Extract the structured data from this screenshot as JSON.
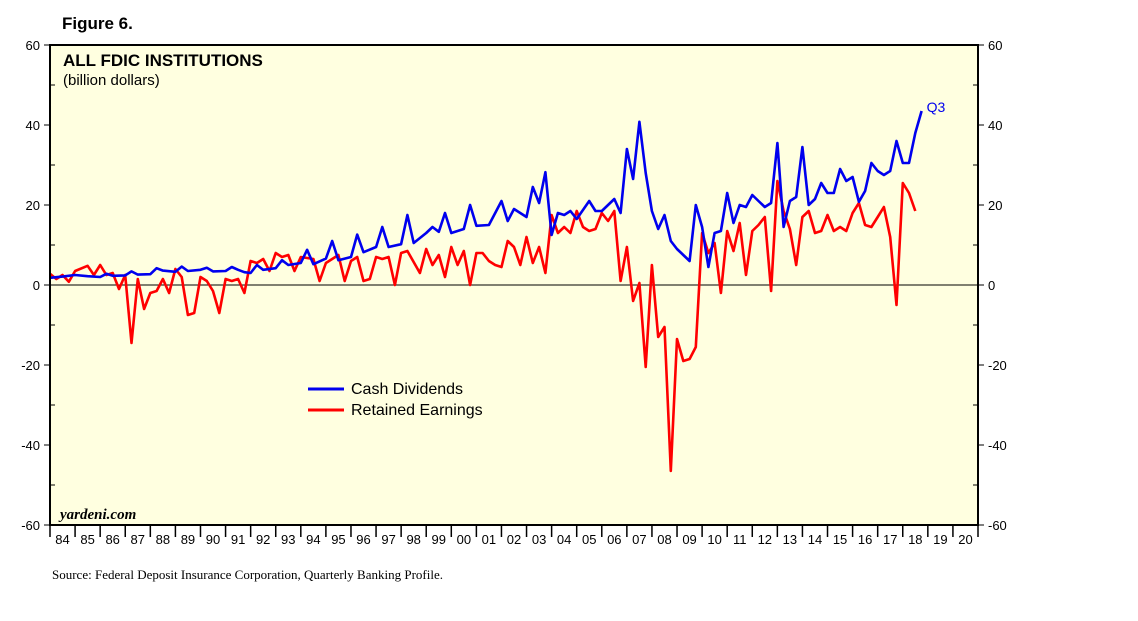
{
  "figure_label": "Figure 6.",
  "source": "Source: Federal Deposit Insurance Corporation, Quarterly Banking Profile.",
  "watermark": "yardeni.com",
  "chart_data": {
    "type": "line",
    "title": "ALL FDIC INSTITUTIONS",
    "subtitle": "(billion dollars)",
    "ylim": [
      -60,
      60
    ],
    "yticks": [
      -60,
      -40,
      -20,
      0,
      20,
      40,
      60
    ],
    "ytick_labels": [
      "-60",
      "-40",
      "-20",
      "0",
      "20",
      "40",
      "60"
    ],
    "x_range": [
      1984,
      2021
    ],
    "x_labels": [
      "84",
      "85",
      "86",
      "87",
      "88",
      "89",
      "90",
      "91",
      "92",
      "93",
      "94",
      "95",
      "96",
      "97",
      "98",
      "99",
      "00",
      "01",
      "02",
      "03",
      "04",
      "05",
      "06",
      "07",
      "08",
      "09",
      "10",
      "11",
      "12",
      "13",
      "14",
      "15",
      "16",
      "17",
      "18",
      "19",
      "20"
    ],
    "last_point_label": "Q3",
    "background": "#ffffe0",
    "legend": {
      "position": "center-left"
    },
    "series": [
      {
        "name": "Cash Dividends",
        "color": "#0000ee",
        "points": [
          [
            1984.0,
            1.8
          ],
          [
            1984.5,
            2.1
          ],
          [
            1985.0,
            2.5
          ],
          [
            1985.5,
            2.2
          ],
          [
            1986.0,
            2.0
          ],
          [
            1986.25,
            2.8
          ],
          [
            1986.5,
            2.3
          ],
          [
            1987.0,
            2.4
          ],
          [
            1987.25,
            3.4
          ],
          [
            1987.5,
            2.6
          ],
          [
            1988.0,
            2.7
          ],
          [
            1988.25,
            4.2
          ],
          [
            1988.5,
            3.6
          ],
          [
            1989.0,
            3.3
          ],
          [
            1989.25,
            4.6
          ],
          [
            1989.5,
            3.5
          ],
          [
            1990.0,
            3.8
          ],
          [
            1990.25,
            4.3
          ],
          [
            1990.5,
            3.4
          ],
          [
            1991.0,
            3.5
          ],
          [
            1991.25,
            4.5
          ],
          [
            1991.5,
            3.8
          ],
          [
            1991.75,
            3.2
          ],
          [
            1992.0,
            3.0
          ],
          [
            1992.25,
            5.0
          ],
          [
            1992.5,
            3.8
          ],
          [
            1993.0,
            4.2
          ],
          [
            1993.25,
            6.2
          ],
          [
            1993.5,
            5.0
          ],
          [
            1994.0,
            5.5
          ],
          [
            1994.25,
            8.8
          ],
          [
            1994.5,
            5.2
          ],
          [
            1995.0,
            6.6
          ],
          [
            1995.25,
            11.0
          ],
          [
            1995.5,
            6.2
          ],
          [
            1996.0,
            7.0
          ],
          [
            1996.25,
            12.6
          ],
          [
            1996.5,
            8.2
          ],
          [
            1997.0,
            9.5
          ],
          [
            1997.25,
            14.5
          ],
          [
            1997.5,
            9.5
          ],
          [
            1998.0,
            10.2
          ],
          [
            1998.25,
            17.5
          ],
          [
            1998.5,
            10.5
          ],
          [
            1999.0,
            13.0
          ],
          [
            1999.25,
            14.5
          ],
          [
            1999.5,
            13.3
          ],
          [
            1999.75,
            18.0
          ],
          [
            2000.0,
            13.0
          ],
          [
            2000.5,
            14.0
          ],
          [
            2000.75,
            20.0
          ],
          [
            2001.0,
            14.8
          ],
          [
            2001.5,
            15.0
          ],
          [
            2002.0,
            21.0
          ],
          [
            2002.25,
            16.0
          ],
          [
            2002.5,
            19.0
          ],
          [
            2003.0,
            17.0
          ],
          [
            2003.25,
            24.5
          ],
          [
            2003.5,
            20.5
          ],
          [
            2003.75,
            28.2
          ],
          [
            2004.0,
            12.5
          ],
          [
            2004.25,
            18.0
          ],
          [
            2004.5,
            17.5
          ],
          [
            2004.75,
            18.5
          ],
          [
            2005.0,
            16.5
          ],
          [
            2005.5,
            21.0
          ],
          [
            2005.75,
            18.5
          ],
          [
            2006.0,
            18.5
          ],
          [
            2006.5,
            21.5
          ],
          [
            2006.75,
            18.0
          ],
          [
            2007.0,
            34.0
          ],
          [
            2007.25,
            26.5
          ],
          [
            2007.5,
            40.8
          ],
          [
            2007.75,
            28.0
          ],
          [
            2008.0,
            18.5
          ],
          [
            2008.25,
            14.0
          ],
          [
            2008.5,
            17.5
          ],
          [
            2008.75,
            11.0
          ],
          [
            2009.0,
            9.0
          ],
          [
            2009.25,
            7.5
          ],
          [
            2009.5,
            6.0
          ],
          [
            2009.75,
            20.0
          ],
          [
            2010.0,
            14.5
          ],
          [
            2010.25,
            4.5
          ],
          [
            2010.5,
            13.0
          ],
          [
            2010.75,
            13.5
          ],
          [
            2011.0,
            23.0
          ],
          [
            2011.25,
            15.5
          ],
          [
            2011.5,
            20.0
          ],
          [
            2011.75,
            19.5
          ],
          [
            2012.0,
            22.5
          ],
          [
            2012.25,
            21.0
          ],
          [
            2012.5,
            19.5
          ],
          [
            2012.75,
            20.5
          ],
          [
            2013.0,
            35.5
          ],
          [
            2013.25,
            14.5
          ],
          [
            2013.5,
            21.0
          ],
          [
            2013.75,
            22.0
          ],
          [
            2014.0,
            34.5
          ],
          [
            2014.25,
            20.0
          ],
          [
            2014.5,
            21.5
          ],
          [
            2014.75,
            25.5
          ],
          [
            2015.0,
            23.0
          ],
          [
            2015.25,
            23.0
          ],
          [
            2015.5,
            29.0
          ],
          [
            2015.75,
            26.0
          ],
          [
            2016.0,
            27.0
          ],
          [
            2016.25,
            20.8
          ],
          [
            2016.5,
            23.5
          ],
          [
            2016.75,
            30.5
          ],
          [
            2017.0,
            28.5
          ],
          [
            2017.25,
            27.5
          ],
          [
            2017.5,
            28.5
          ],
          [
            2017.75,
            36.0
          ],
          [
            2018.0,
            30.5
          ],
          [
            2018.25,
            30.5
          ],
          [
            2018.5,
            38.0
          ],
          [
            2018.75,
            43.5
          ]
        ]
      },
      {
        "name": "Retained Earnings",
        "color": "#ff0000",
        "points": [
          [
            1984.0,
            2.8
          ],
          [
            1984.25,
            1.5
          ],
          [
            1984.5,
            2.5
          ],
          [
            1984.75,
            0.8
          ],
          [
            1985.0,
            3.5
          ],
          [
            1985.5,
            4.8
          ],
          [
            1985.75,
            2.5
          ],
          [
            1986.0,
            5.0
          ],
          [
            1986.25,
            2.5
          ],
          [
            1986.5,
            3.0
          ],
          [
            1986.75,
            -1.0
          ],
          [
            1987.0,
            2.5
          ],
          [
            1987.25,
            -14.5
          ],
          [
            1987.5,
            1.5
          ],
          [
            1987.75,
            -6.0
          ],
          [
            1988.0,
            -2.0
          ],
          [
            1988.25,
            -1.5
          ],
          [
            1988.5,
            1.5
          ],
          [
            1988.75,
            -2.0
          ],
          [
            1989.0,
            4.0
          ],
          [
            1989.25,
            2.0
          ],
          [
            1989.5,
            -7.5
          ],
          [
            1989.75,
            -7.0
          ],
          [
            1990.0,
            2.0
          ],
          [
            1990.25,
            1.0
          ],
          [
            1990.5,
            -1.5
          ],
          [
            1990.75,
            -7.0
          ],
          [
            1991.0,
            1.5
          ],
          [
            1991.25,
            1.0
          ],
          [
            1991.5,
            1.5
          ],
          [
            1991.75,
            -2.0
          ],
          [
            1992.0,
            6.0
          ],
          [
            1992.25,
            5.5
          ],
          [
            1992.5,
            6.5
          ],
          [
            1992.75,
            3.5
          ],
          [
            1993.0,
            8.0
          ],
          [
            1993.25,
            7.0
          ],
          [
            1993.5,
            7.5
          ],
          [
            1993.75,
            3.5
          ],
          [
            1994.0,
            7.0
          ],
          [
            1994.5,
            6.5
          ],
          [
            1994.75,
            1.0
          ],
          [
            1995.0,
            5.5
          ],
          [
            1995.5,
            7.5
          ],
          [
            1995.75,
            1.0
          ],
          [
            1996.0,
            6.0
          ],
          [
            1996.25,
            7.0
          ],
          [
            1996.5,
            1.0
          ],
          [
            1996.75,
            1.5
          ],
          [
            1997.0,
            7.0
          ],
          [
            1997.25,
            6.5
          ],
          [
            1997.5,
            7.0
          ],
          [
            1997.75,
            0.0
          ],
          [
            1998.0,
            8.0
          ],
          [
            1998.25,
            8.5
          ],
          [
            1998.75,
            3.0
          ],
          [
            1999.0,
            9.0
          ],
          [
            1999.25,
            5.0
          ],
          [
            1999.5,
            7.5
          ],
          [
            1999.75,
            2.0
          ],
          [
            2000.0,
            9.5
          ],
          [
            2000.25,
            5.0
          ],
          [
            2000.5,
            8.5
          ],
          [
            2000.75,
            0.0
          ],
          [
            2001.0,
            8.0
          ],
          [
            2001.25,
            8.0
          ],
          [
            2001.5,
            6.0
          ],
          [
            2001.75,
            5.0
          ],
          [
            2002.0,
            4.5
          ],
          [
            2002.25,
            11.0
          ],
          [
            2002.5,
            9.5
          ],
          [
            2002.75,
            5.0
          ],
          [
            2003.0,
            12.0
          ],
          [
            2003.25,
            5.5
          ],
          [
            2003.5,
            9.5
          ],
          [
            2003.75,
            3.0
          ],
          [
            2004.0,
            17.5
          ],
          [
            2004.25,
            13.0
          ],
          [
            2004.5,
            14.5
          ],
          [
            2004.75,
            13.0
          ],
          [
            2005.0,
            18.5
          ],
          [
            2005.25,
            14.5
          ],
          [
            2005.5,
            13.5
          ],
          [
            2005.75,
            14.0
          ],
          [
            2006.0,
            18.0
          ],
          [
            2006.25,
            16.0
          ],
          [
            2006.5,
            18.5
          ],
          [
            2006.75,
            1.0
          ],
          [
            2007.0,
            9.5
          ],
          [
            2007.25,
            -4.0
          ],
          [
            2007.5,
            0.5
          ],
          [
            2007.75,
            -20.5
          ],
          [
            2008.0,
            5.0
          ],
          [
            2008.25,
            -13.0
          ],
          [
            2008.5,
            -10.5
          ],
          [
            2008.75,
            -46.5
          ],
          [
            2009.0,
            -13.5
          ],
          [
            2009.25,
            -19.0
          ],
          [
            2009.5,
            -18.5
          ],
          [
            2009.75,
            -15.5
          ],
          [
            2010.0,
            13.0
          ],
          [
            2010.25,
            8.0
          ],
          [
            2010.5,
            10.5
          ],
          [
            2010.75,
            -2.0
          ],
          [
            2011.0,
            13.5
          ],
          [
            2011.25,
            8.5
          ],
          [
            2011.5,
            15.5
          ],
          [
            2011.75,
            2.5
          ],
          [
            2012.0,
            13.5
          ],
          [
            2012.25,
            15.0
          ],
          [
            2012.5,
            17.0
          ],
          [
            2012.75,
            -1.5
          ],
          [
            2013.0,
            26.0
          ],
          [
            2013.25,
            18.5
          ],
          [
            2013.5,
            14.0
          ],
          [
            2013.75,
            5.0
          ],
          [
            2014.0,
            17.0
          ],
          [
            2014.25,
            18.5
          ],
          [
            2014.5,
            13.0
          ],
          [
            2014.75,
            13.5
          ],
          [
            2015.0,
            17.5
          ],
          [
            2015.25,
            13.5
          ],
          [
            2015.5,
            14.5
          ],
          [
            2015.75,
            13.5
          ],
          [
            2016.0,
            18.0
          ],
          [
            2016.25,
            20.5
          ],
          [
            2016.5,
            15.0
          ],
          [
            2016.75,
            14.5
          ],
          [
            2017.0,
            17.0
          ],
          [
            2017.25,
            19.5
          ],
          [
            2017.5,
            12.0
          ],
          [
            2017.75,
            -5.0
          ],
          [
            2018.0,
            25.5
          ],
          [
            2018.25,
            23.0
          ],
          [
            2018.5,
            18.5
          ]
        ]
      }
    ]
  }
}
